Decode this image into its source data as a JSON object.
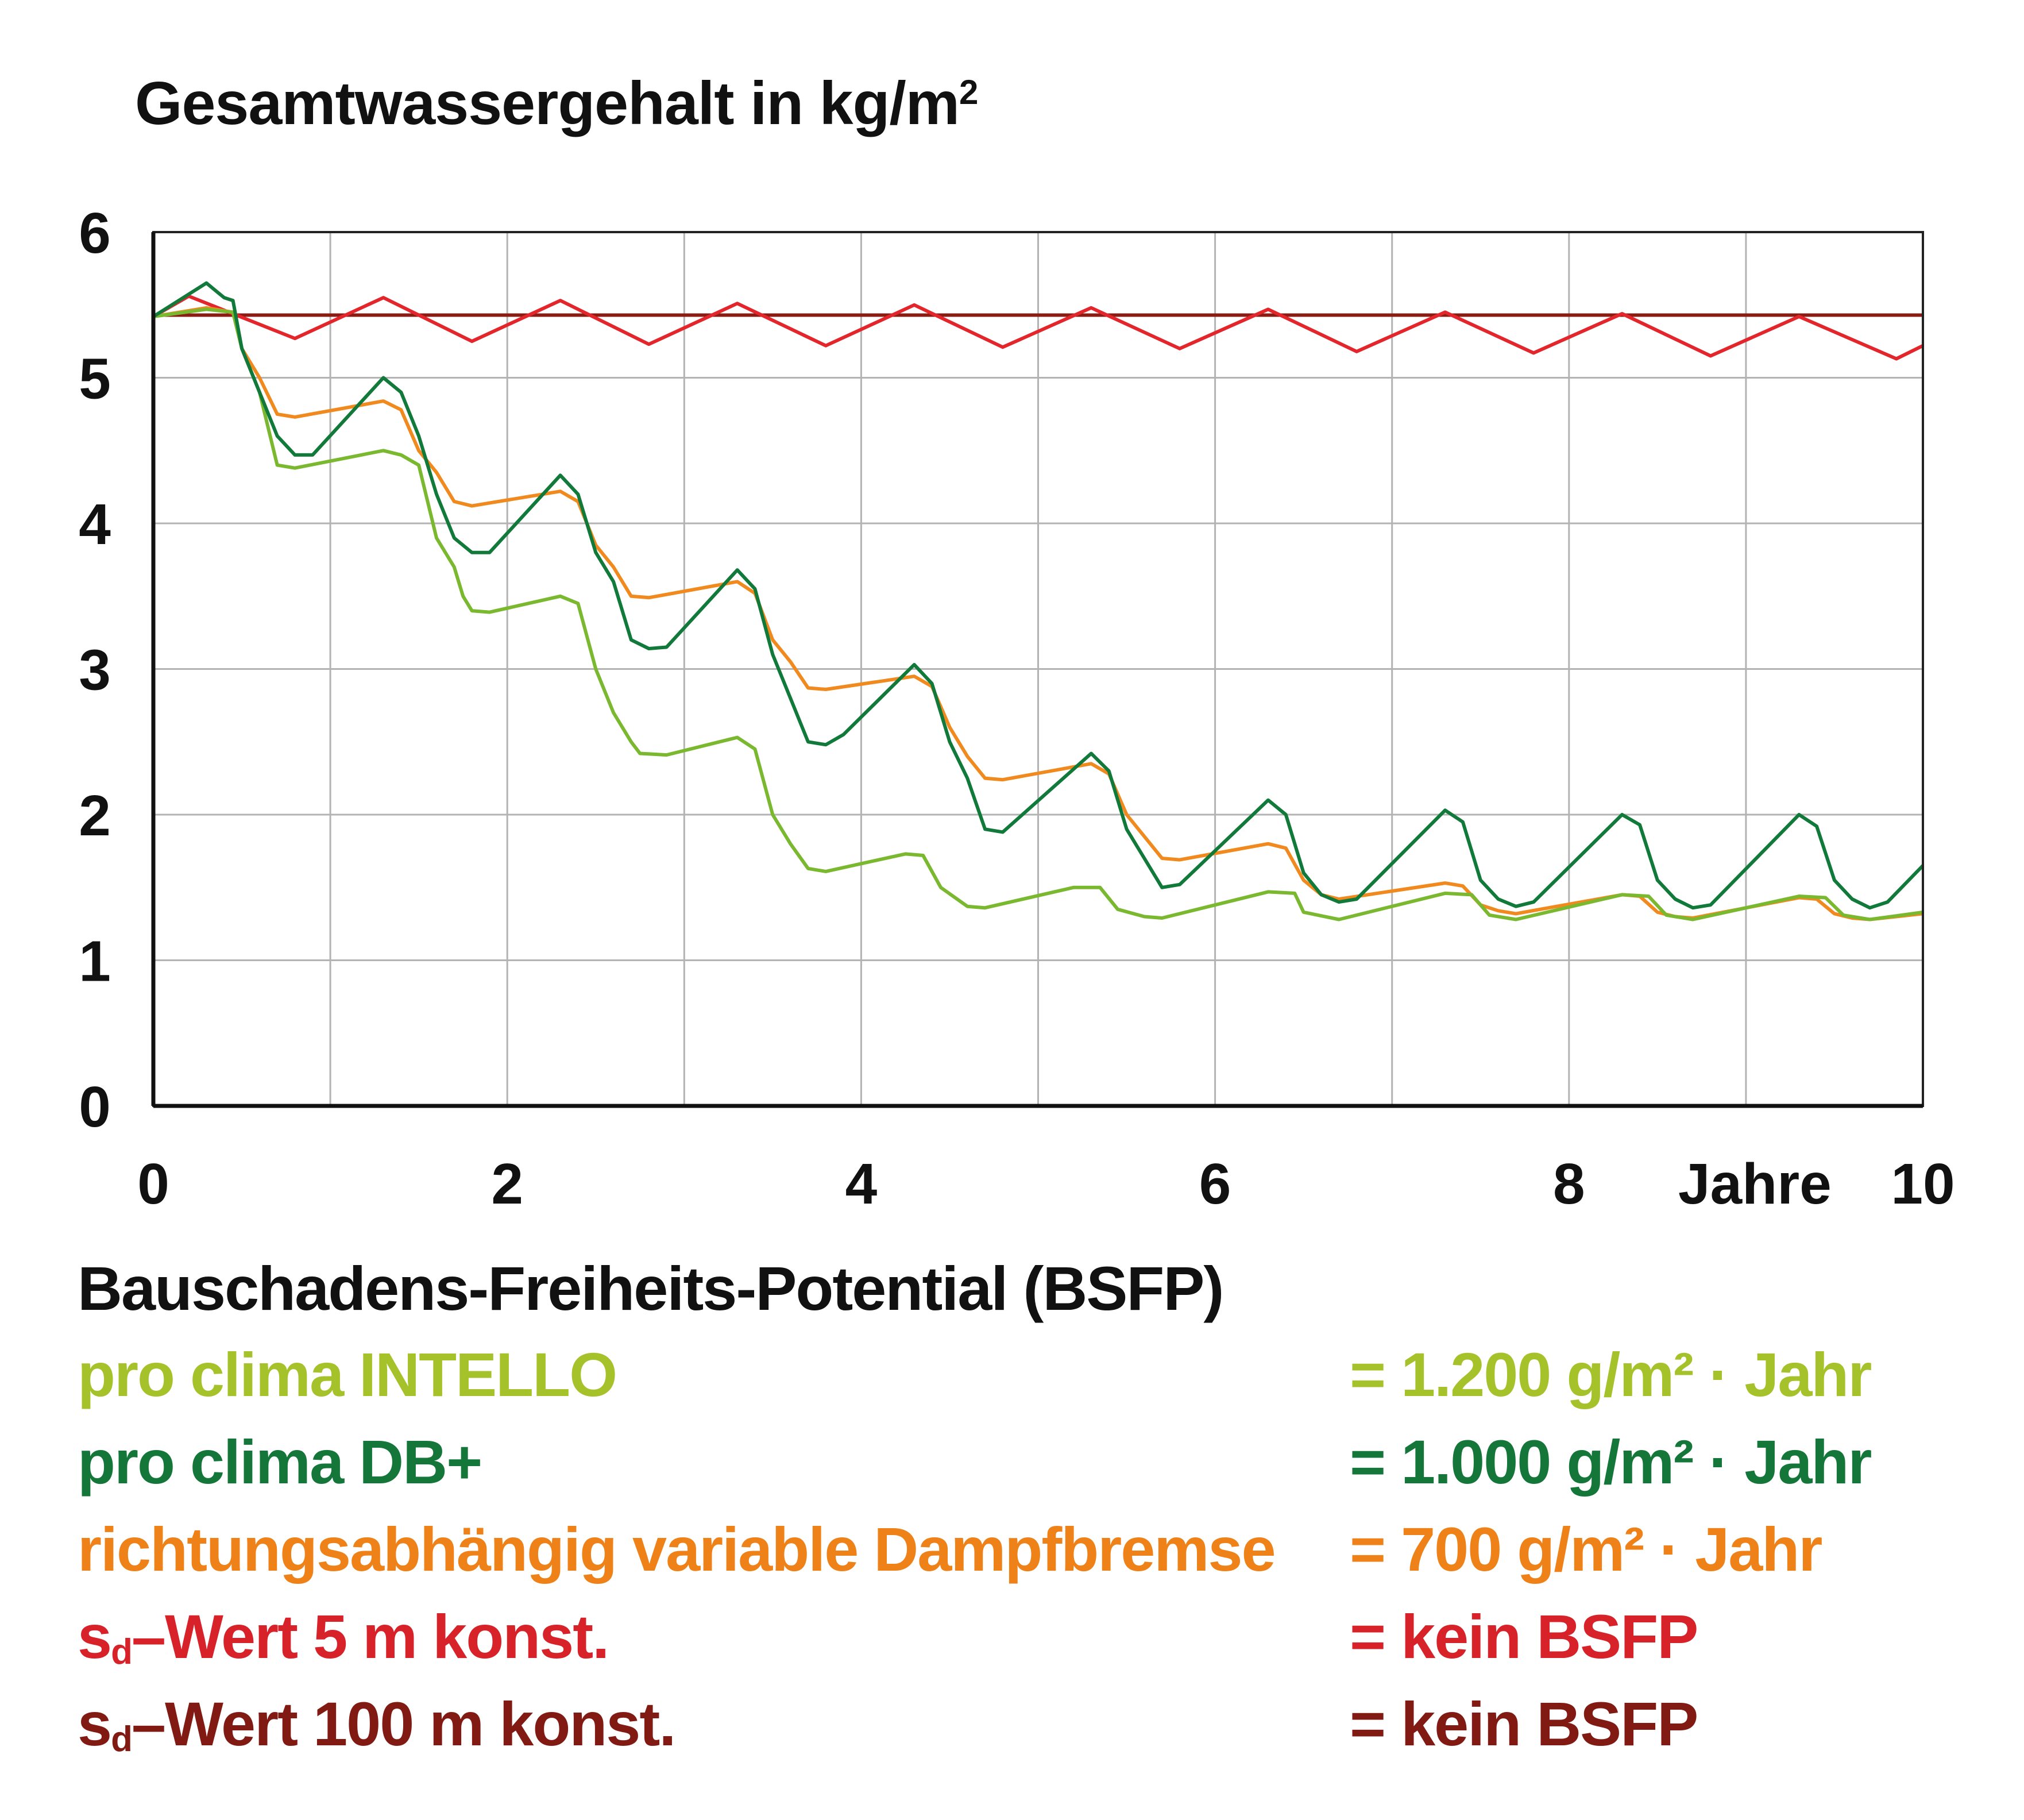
{
  "chart_data": {
    "type": "line",
    "title": "Gesamtwassergehalt in kg/m",
    "title_sup": "2",
    "xlabel": "Jahre",
    "ylabel": "Gesamtwassergehalt in kg/m²",
    "xlim": [
      0,
      10
    ],
    "ylim": [
      0,
      6
    ],
    "x_ticks": [
      "0",
      "2",
      "4",
      "6",
      "8",
      "10"
    ],
    "y_ticks": [
      "0",
      "1",
      "2",
      "3",
      "4",
      "5",
      "6"
    ],
    "grid": true,
    "series": [
      {
        "name": "s_d-Wert 100 m konst.",
        "color": "#8a1c14",
        "points": [
          [
            0,
            5.43
          ],
          [
            10,
            5.43
          ]
        ]
      },
      {
        "name": "s_d-Wert 5 m konst.",
        "color": "#e3262b",
        "points": [
          [
            0,
            5.42
          ],
          [
            0.2,
            5.56
          ],
          [
            0.8,
            5.27
          ],
          [
            1.3,
            5.55
          ],
          [
            1.8,
            5.25
          ],
          [
            2.3,
            5.53
          ],
          [
            2.8,
            5.23
          ],
          [
            3.3,
            5.51
          ],
          [
            3.8,
            5.22
          ],
          [
            4.3,
            5.5
          ],
          [
            4.8,
            5.21
          ],
          [
            5.3,
            5.48
          ],
          [
            5.8,
            5.2
          ],
          [
            6.3,
            5.47
          ],
          [
            6.8,
            5.18
          ],
          [
            7.3,
            5.45
          ],
          [
            7.8,
            5.17
          ],
          [
            8.3,
            5.44
          ],
          [
            8.8,
            5.15
          ],
          [
            9.3,
            5.42
          ],
          [
            9.85,
            5.13
          ],
          [
            10,
            5.22
          ]
        ]
      },
      {
        "name": "richtungsabhängig variable Dampfbremse",
        "color": "#f18a1e",
        "points": [
          [
            0,
            5.42
          ],
          [
            0.3,
            5.48
          ],
          [
            0.45,
            5.45
          ],
          [
            0.5,
            5.2
          ],
          [
            0.6,
            5.0
          ],
          [
            0.7,
            4.75
          ],
          [
            0.8,
            4.73
          ],
          [
            1.3,
            4.84
          ],
          [
            1.4,
            4.78
          ],
          [
            1.5,
            4.5
          ],
          [
            1.6,
            4.35
          ],
          [
            1.7,
            4.15
          ],
          [
            1.8,
            4.12
          ],
          [
            2.3,
            4.22
          ],
          [
            2.4,
            4.15
          ],
          [
            2.5,
            3.85
          ],
          [
            2.6,
            3.7
          ],
          [
            2.7,
            3.5
          ],
          [
            2.8,
            3.49
          ],
          [
            3.3,
            3.6
          ],
          [
            3.4,
            3.52
          ],
          [
            3.5,
            3.2
          ],
          [
            3.6,
            3.05
          ],
          [
            3.7,
            2.87
          ],
          [
            3.8,
            2.86
          ],
          [
            4.3,
            2.95
          ],
          [
            4.4,
            2.88
          ],
          [
            4.5,
            2.6
          ],
          [
            4.6,
            2.4
          ],
          [
            4.7,
            2.25
          ],
          [
            4.8,
            2.24
          ],
          [
            5.3,
            2.35
          ],
          [
            5.4,
            2.28
          ],
          [
            5.5,
            2.0
          ],
          [
            5.6,
            1.85
          ],
          [
            5.7,
            1.7
          ],
          [
            5.8,
            1.69
          ],
          [
            6.3,
            1.8
          ],
          [
            6.4,
            1.77
          ],
          [
            6.5,
            1.55
          ],
          [
            6.6,
            1.45
          ],
          [
            6.7,
            1.42
          ],
          [
            7.3,
            1.53
          ],
          [
            7.4,
            1.51
          ],
          [
            7.5,
            1.38
          ],
          [
            7.6,
            1.34
          ],
          [
            7.7,
            1.32
          ],
          [
            8.3,
            1.45
          ],
          [
            8.4,
            1.44
          ],
          [
            8.5,
            1.33
          ],
          [
            8.6,
            1.3
          ],
          [
            8.7,
            1.29
          ],
          [
            9.3,
            1.43
          ],
          [
            9.4,
            1.42
          ],
          [
            9.5,
            1.32
          ],
          [
            9.6,
            1.29
          ],
          [
            9.7,
            1.28
          ],
          [
            10,
            1.32
          ]
        ]
      },
      {
        "name": "pro clima INTELLO",
        "color": "#7ab830",
        "points": [
          [
            0,
            5.42
          ],
          [
            0.3,
            5.47
          ],
          [
            0.45,
            5.45
          ],
          [
            0.5,
            5.2
          ],
          [
            0.6,
            4.9
          ],
          [
            0.7,
            4.4
          ],
          [
            0.8,
            4.38
          ],
          [
            1.3,
            4.5
          ],
          [
            1.4,
            4.47
          ],
          [
            1.5,
            4.4
          ],
          [
            1.6,
            3.9
          ],
          [
            1.7,
            3.7
          ],
          [
            1.75,
            3.5
          ],
          [
            1.8,
            3.4
          ],
          [
            1.9,
            3.39
          ],
          [
            2.3,
            3.5
          ],
          [
            2.4,
            3.45
          ],
          [
            2.5,
            3.0
          ],
          [
            2.6,
            2.7
          ],
          [
            2.7,
            2.5
          ],
          [
            2.75,
            2.42
          ],
          [
            2.9,
            2.41
          ],
          [
            3.3,
            2.53
          ],
          [
            3.4,
            2.45
          ],
          [
            3.5,
            2.0
          ],
          [
            3.6,
            1.8
          ],
          [
            3.7,
            1.63
          ],
          [
            3.8,
            1.61
          ],
          [
            4.25,
            1.73
          ],
          [
            4.35,
            1.72
          ],
          [
            4.45,
            1.5
          ],
          [
            4.6,
            1.37
          ],
          [
            4.7,
            1.36
          ],
          [
            5.2,
            1.5
          ],
          [
            5.35,
            1.5
          ],
          [
            5.45,
            1.35
          ],
          [
            5.6,
            1.3
          ],
          [
            5.7,
            1.29
          ],
          [
            6.3,
            1.47
          ],
          [
            6.45,
            1.46
          ],
          [
            6.5,
            1.33
          ],
          [
            6.7,
            1.28
          ],
          [
            7.3,
            1.46
          ],
          [
            7.45,
            1.45
          ],
          [
            7.55,
            1.31
          ],
          [
            7.7,
            1.28
          ],
          [
            8.3,
            1.45
          ],
          [
            8.45,
            1.44
          ],
          [
            8.55,
            1.31
          ],
          [
            8.7,
            1.28
          ],
          [
            9.3,
            1.44
          ],
          [
            9.45,
            1.43
          ],
          [
            9.55,
            1.31
          ],
          [
            9.7,
            1.28
          ],
          [
            10,
            1.33
          ]
        ]
      },
      {
        "name": "pro clima DB+",
        "color": "#117a3a",
        "points": [
          [
            0,
            5.42
          ],
          [
            0.3,
            5.65
          ],
          [
            0.4,
            5.55
          ],
          [
            0.45,
            5.53
          ],
          [
            0.5,
            5.2
          ],
          [
            0.6,
            4.9
          ],
          [
            0.7,
            4.6
          ],
          [
            0.8,
            4.47
          ],
          [
            0.9,
            4.47
          ],
          [
            1.3,
            5.0
          ],
          [
            1.4,
            4.9
          ],
          [
            1.5,
            4.6
          ],
          [
            1.6,
            4.2
          ],
          [
            1.7,
            3.9
          ],
          [
            1.8,
            3.8
          ],
          [
            1.9,
            3.8
          ],
          [
            2.3,
            4.33
          ],
          [
            2.4,
            4.2
          ],
          [
            2.5,
            3.8
          ],
          [
            2.6,
            3.6
          ],
          [
            2.7,
            3.2
          ],
          [
            2.8,
            3.14
          ],
          [
            2.9,
            3.15
          ],
          [
            3.3,
            3.68
          ],
          [
            3.4,
            3.55
          ],
          [
            3.5,
            3.1
          ],
          [
            3.6,
            2.8
          ],
          [
            3.7,
            2.5
          ],
          [
            3.8,
            2.48
          ],
          [
            3.9,
            2.55
          ],
          [
            4.3,
            3.03
          ],
          [
            4.4,
            2.9
          ],
          [
            4.5,
            2.5
          ],
          [
            4.6,
            2.25
          ],
          [
            4.7,
            1.9
          ],
          [
            4.8,
            1.88
          ],
          [
            5.3,
            2.42
          ],
          [
            5.4,
            2.3
          ],
          [
            5.5,
            1.9
          ],
          [
            5.6,
            1.7
          ],
          [
            5.7,
            1.5
          ],
          [
            5.8,
            1.52
          ],
          [
            6.3,
            2.1
          ],
          [
            6.4,
            2.0
          ],
          [
            6.5,
            1.6
          ],
          [
            6.6,
            1.45
          ],
          [
            6.7,
            1.4
          ],
          [
            6.8,
            1.42
          ],
          [
            7.3,
            2.03
          ],
          [
            7.4,
            1.95
          ],
          [
            7.5,
            1.55
          ],
          [
            7.6,
            1.42
          ],
          [
            7.7,
            1.37
          ],
          [
            7.8,
            1.4
          ],
          [
            8.3,
            2.0
          ],
          [
            8.4,
            1.93
          ],
          [
            8.5,
            1.55
          ],
          [
            8.6,
            1.42
          ],
          [
            8.7,
            1.36
          ],
          [
            8.8,
            1.38
          ],
          [
            9.3,
            2.0
          ],
          [
            9.4,
            1.92
          ],
          [
            9.5,
            1.55
          ],
          [
            9.6,
            1.42
          ],
          [
            9.7,
            1.36
          ],
          [
            9.8,
            1.4
          ],
          [
            10,
            1.65
          ]
        ]
      }
    ]
  },
  "legend": {
    "title": "Bauschadens-Freiheits-Potential (BSFP)",
    "items": [
      {
        "label": "pro clima INTELLO",
        "value": "= 1.200 g/m² · Jahr",
        "color": "#a6c22b"
      },
      {
        "label": "pro clima DB+",
        "value": "= 1.000 g/m² · Jahr",
        "color": "#147638"
      },
      {
        "label": "richtungsabhängig variable Dampfbremse",
        "value": "= 700 g/m² · Jahr",
        "color": "#ee8219"
      },
      {
        "label_main": "s",
        "label_sub": "d",
        "label_rest": "–Wert 5 m konst.",
        "value": "= kein BSFP",
        "color": "#d8222a"
      },
      {
        "label_main": "s",
        "label_sub": "d",
        "label_rest": "–Wert 100 m konst.",
        "value": "= kein BSFP",
        "color": "#821a14"
      }
    ]
  }
}
